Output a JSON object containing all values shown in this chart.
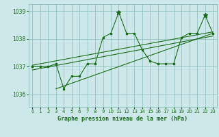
{
  "background_color": "#cce8e8",
  "grid_color": "#88bbbb",
  "line_color": "#1a6b1a",
  "xlabel": "Graphe pression niveau de la mer (hPa)",
  "ylim": [
    1035.55,
    1039.25
  ],
  "xlim": [
    -0.5,
    23.5
  ],
  "yticks": [
    1036,
    1037,
    1038,
    1039
  ],
  "xticks": [
    0,
    1,
    2,
    3,
    4,
    5,
    6,
    7,
    8,
    9,
    10,
    11,
    12,
    13,
    14,
    15,
    16,
    17,
    18,
    19,
    20,
    21,
    22,
    23
  ],
  "main_data": [
    1037.0,
    1037.0,
    1037.0,
    1037.1,
    1036.2,
    1036.65,
    1036.65,
    1037.1,
    1037.1,
    1038.05,
    1038.2,
    1038.95,
    1038.2,
    1038.2,
    1037.6,
    1037.2,
    1037.1,
    1037.1,
    1037.1,
    1038.05,
    1038.2,
    1038.2,
    1038.85,
    1038.2
  ],
  "trend1_x": [
    0,
    23
  ],
  "trend1_y": [
    1037.05,
    1038.25
  ],
  "trend2_x": [
    0,
    23
  ],
  "trend2_y": [
    1036.88,
    1038.1
  ],
  "trend3_x": [
    3,
    23
  ],
  "trend3_y": [
    1036.2,
    1038.2
  ],
  "tick_fontsize": 5.0,
  "xlabel_fontsize": 6.0,
  "ytick_labelsize": 5.5
}
